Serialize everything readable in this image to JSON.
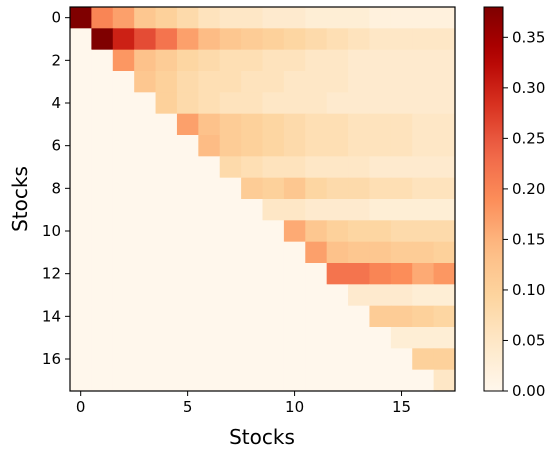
{
  "chart_data": {
    "type": "heatmap",
    "title": "",
    "xlabel": "Stocks",
    "ylabel": "Stocks",
    "n": 18,
    "x_ticks": [
      0,
      5,
      10,
      15
    ],
    "y_ticks": [
      0,
      2,
      4,
      6,
      8,
      10,
      12,
      14,
      16
    ],
    "x_tick_labels": [
      "0",
      "5",
      "10",
      "15"
    ],
    "y_tick_labels": [
      "0",
      "2",
      "4",
      "6",
      "8",
      "10",
      "12",
      "14",
      "16"
    ],
    "colorbar": {
      "colormap": "OrRd",
      "vmin": 0.0,
      "vmax": 0.38,
      "ticks": [
        0.0,
        0.05,
        0.1,
        0.15,
        0.2,
        0.25,
        0.3,
        0.35
      ],
      "tick_labels": [
        "0.00",
        "0.05",
        "0.10",
        "0.15",
        "0.20",
        "0.25",
        "0.30",
        "0.35"
      ]
    },
    "grid": false,
    "matrix": [
      [
        0.38,
        0.2,
        0.17,
        0.12,
        0.1,
        0.08,
        0.06,
        0.05,
        0.05,
        0.04,
        0.04,
        0.03,
        0.03,
        0.03,
        0.02,
        0.02,
        0.02,
        0.02
      ],
      [
        0.0,
        0.38,
        0.3,
        0.26,
        0.22,
        0.17,
        0.14,
        0.12,
        0.11,
        0.1,
        0.09,
        0.08,
        0.07,
        0.06,
        0.05,
        0.05,
        0.05,
        0.05
      ],
      [
        0.0,
        0.0,
        0.18,
        0.13,
        0.11,
        0.09,
        0.08,
        0.07,
        0.07,
        0.06,
        0.06,
        0.05,
        0.05,
        0.04,
        0.04,
        0.04,
        0.04,
        0.04
      ],
      [
        0.0,
        0.0,
        0.0,
        0.12,
        0.1,
        0.08,
        0.07,
        0.07,
        0.06,
        0.06,
        0.05,
        0.05,
        0.05,
        0.04,
        0.04,
        0.04,
        0.04,
        0.04
      ],
      [
        0.0,
        0.0,
        0.0,
        0.0,
        0.1,
        0.08,
        0.07,
        0.06,
        0.06,
        0.05,
        0.05,
        0.05,
        0.04,
        0.04,
        0.04,
        0.04,
        0.04,
        0.04
      ],
      [
        0.0,
        0.0,
        0.0,
        0.0,
        0.0,
        0.17,
        0.13,
        0.11,
        0.1,
        0.09,
        0.08,
        0.07,
        0.07,
        0.06,
        0.06,
        0.06,
        0.05,
        0.05
      ],
      [
        0.0,
        0.0,
        0.0,
        0.0,
        0.0,
        0.0,
        0.14,
        0.11,
        0.1,
        0.09,
        0.08,
        0.07,
        0.07,
        0.06,
        0.06,
        0.06,
        0.05,
        0.05
      ],
      [
        0.0,
        0.0,
        0.0,
        0.0,
        0.0,
        0.0,
        0.0,
        0.08,
        0.07,
        0.06,
        0.06,
        0.05,
        0.05,
        0.05,
        0.04,
        0.04,
        0.04,
        0.04
      ],
      [
        0.0,
        0.0,
        0.0,
        0.0,
        0.0,
        0.0,
        0.0,
        0.0,
        0.11,
        0.1,
        0.12,
        0.09,
        0.08,
        0.08,
        0.07,
        0.07,
        0.06,
        0.06
      ],
      [
        0.0,
        0.0,
        0.0,
        0.0,
        0.0,
        0.0,
        0.0,
        0.0,
        0.0,
        0.05,
        0.05,
        0.04,
        0.04,
        0.04,
        0.03,
        0.03,
        0.03,
        0.03
      ],
      [
        0.0,
        0.0,
        0.0,
        0.0,
        0.0,
        0.0,
        0.0,
        0.0,
        0.0,
        0.0,
        0.16,
        0.12,
        0.1,
        0.09,
        0.09,
        0.08,
        0.08,
        0.08
      ],
      [
        0.0,
        0.0,
        0.0,
        0.0,
        0.0,
        0.0,
        0.0,
        0.0,
        0.0,
        0.0,
        0.0,
        0.17,
        0.13,
        0.12,
        0.12,
        0.11,
        0.11,
        0.1
      ],
      [
        0.0,
        0.0,
        0.0,
        0.0,
        0.0,
        0.0,
        0.0,
        0.0,
        0.0,
        0.0,
        0.0,
        0.0,
        0.22,
        0.22,
        0.2,
        0.19,
        0.16,
        0.18
      ],
      [
        0.0,
        0.0,
        0.0,
        0.0,
        0.0,
        0.0,
        0.0,
        0.0,
        0.0,
        0.0,
        0.0,
        0.0,
        0.0,
        0.04,
        0.04,
        0.04,
        0.03,
        0.03
      ],
      [
        0.0,
        0.0,
        0.0,
        0.0,
        0.0,
        0.0,
        0.0,
        0.0,
        0.0,
        0.0,
        0.0,
        0.0,
        0.0,
        0.0,
        0.11,
        0.11,
        0.1,
        0.09
      ],
      [
        0.0,
        0.0,
        0.0,
        0.0,
        0.0,
        0.0,
        0.0,
        0.0,
        0.0,
        0.0,
        0.0,
        0.0,
        0.0,
        0.0,
        0.0,
        0.03,
        0.03,
        0.03
      ],
      [
        0.0,
        0.0,
        0.0,
        0.0,
        0.0,
        0.0,
        0.0,
        0.0,
        0.0,
        0.0,
        0.0,
        0.0,
        0.0,
        0.0,
        0.0,
        0.0,
        0.1,
        0.1
      ],
      [
        0.0,
        0.0,
        0.0,
        0.0,
        0.0,
        0.0,
        0.0,
        0.0,
        0.0,
        0.0,
        0.0,
        0.0,
        0.0,
        0.0,
        0.0,
        0.0,
        0.0,
        0.05
      ]
    ]
  }
}
